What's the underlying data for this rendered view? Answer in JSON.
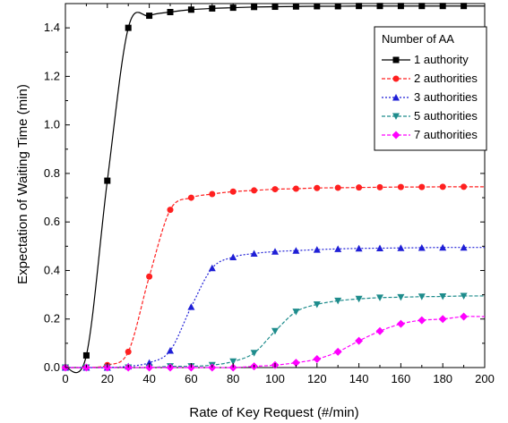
{
  "chart_data": {
    "type": "line",
    "xlabel": "Rate of Key Request (#/min)",
    "ylabel": "Expectation of Waiting Time (min)",
    "xlim": [
      0,
      200
    ],
    "ylim": [
      0,
      1.5
    ],
    "xticks": [
      "0",
      "20",
      "40",
      "60",
      "80",
      "100",
      "120",
      "140",
      "160",
      "180",
      "200"
    ],
    "yticks": [
      "0.0",
      "0.2",
      "0.4",
      "0.6",
      "0.8",
      "1.0",
      "1.2",
      "1.4"
    ],
    "grid": false,
    "legend": {
      "title": "Number of AA",
      "placement": "top-right"
    },
    "x": [
      0,
      10,
      20,
      30,
      40,
      50,
      60,
      70,
      80,
      90,
      100,
      110,
      120,
      130,
      140,
      150,
      160,
      170,
      180,
      190
    ],
    "series": [
      {
        "name": "1 authority",
        "color": "#000000",
        "dash": "solid",
        "marker": "square",
        "values": [
          0.0,
          0.05,
          0.77,
          1.4,
          1.45,
          1.465,
          1.475,
          1.48,
          1.483,
          1.486,
          1.487,
          1.488,
          1.489,
          1.489,
          1.49,
          1.49,
          1.49,
          1.49,
          1.49,
          1.49
        ]
      },
      {
        "name": "2 authorities",
        "color": "#ff2020",
        "dash": "dashed",
        "marker": "circle",
        "values": [
          0.0,
          0.0,
          0.01,
          0.065,
          0.375,
          0.65,
          0.7,
          0.715,
          0.725,
          0.73,
          0.735,
          0.737,
          0.74,
          0.741,
          0.742,
          0.743,
          0.744,
          0.744,
          0.745,
          0.745
        ]
      },
      {
        "name": "3 authorities",
        "color": "#1f1fd6",
        "dash": "dotted",
        "marker": "triangle-up",
        "values": [
          0.0,
          0.0,
          0.0,
          0.005,
          0.02,
          0.07,
          0.25,
          0.41,
          0.455,
          0.47,
          0.478,
          0.482,
          0.486,
          0.489,
          0.491,
          0.492,
          0.493,
          0.494,
          0.495,
          0.495
        ]
      },
      {
        "name": "5 authorities",
        "color": "#1e8c8c",
        "dash": "dashed",
        "marker": "triangle-down",
        "values": [
          0.0,
          0.0,
          0.0,
          0.0,
          0.0,
          0.005,
          0.005,
          0.01,
          0.025,
          0.06,
          0.15,
          0.23,
          0.26,
          0.275,
          0.283,
          0.288,
          0.29,
          0.292,
          0.293,
          0.295
        ]
      },
      {
        "name": "7 authorities",
        "color": "#ff00ff",
        "dash": "dashed",
        "marker": "diamond",
        "values": [
          0.0,
          0.0,
          0.0,
          0.0,
          0.0,
          0.0,
          0.0,
          0.0,
          0.0,
          0.005,
          0.01,
          0.02,
          0.035,
          0.065,
          0.11,
          0.15,
          0.18,
          0.195,
          0.2,
          0.21
        ]
      }
    ]
  }
}
